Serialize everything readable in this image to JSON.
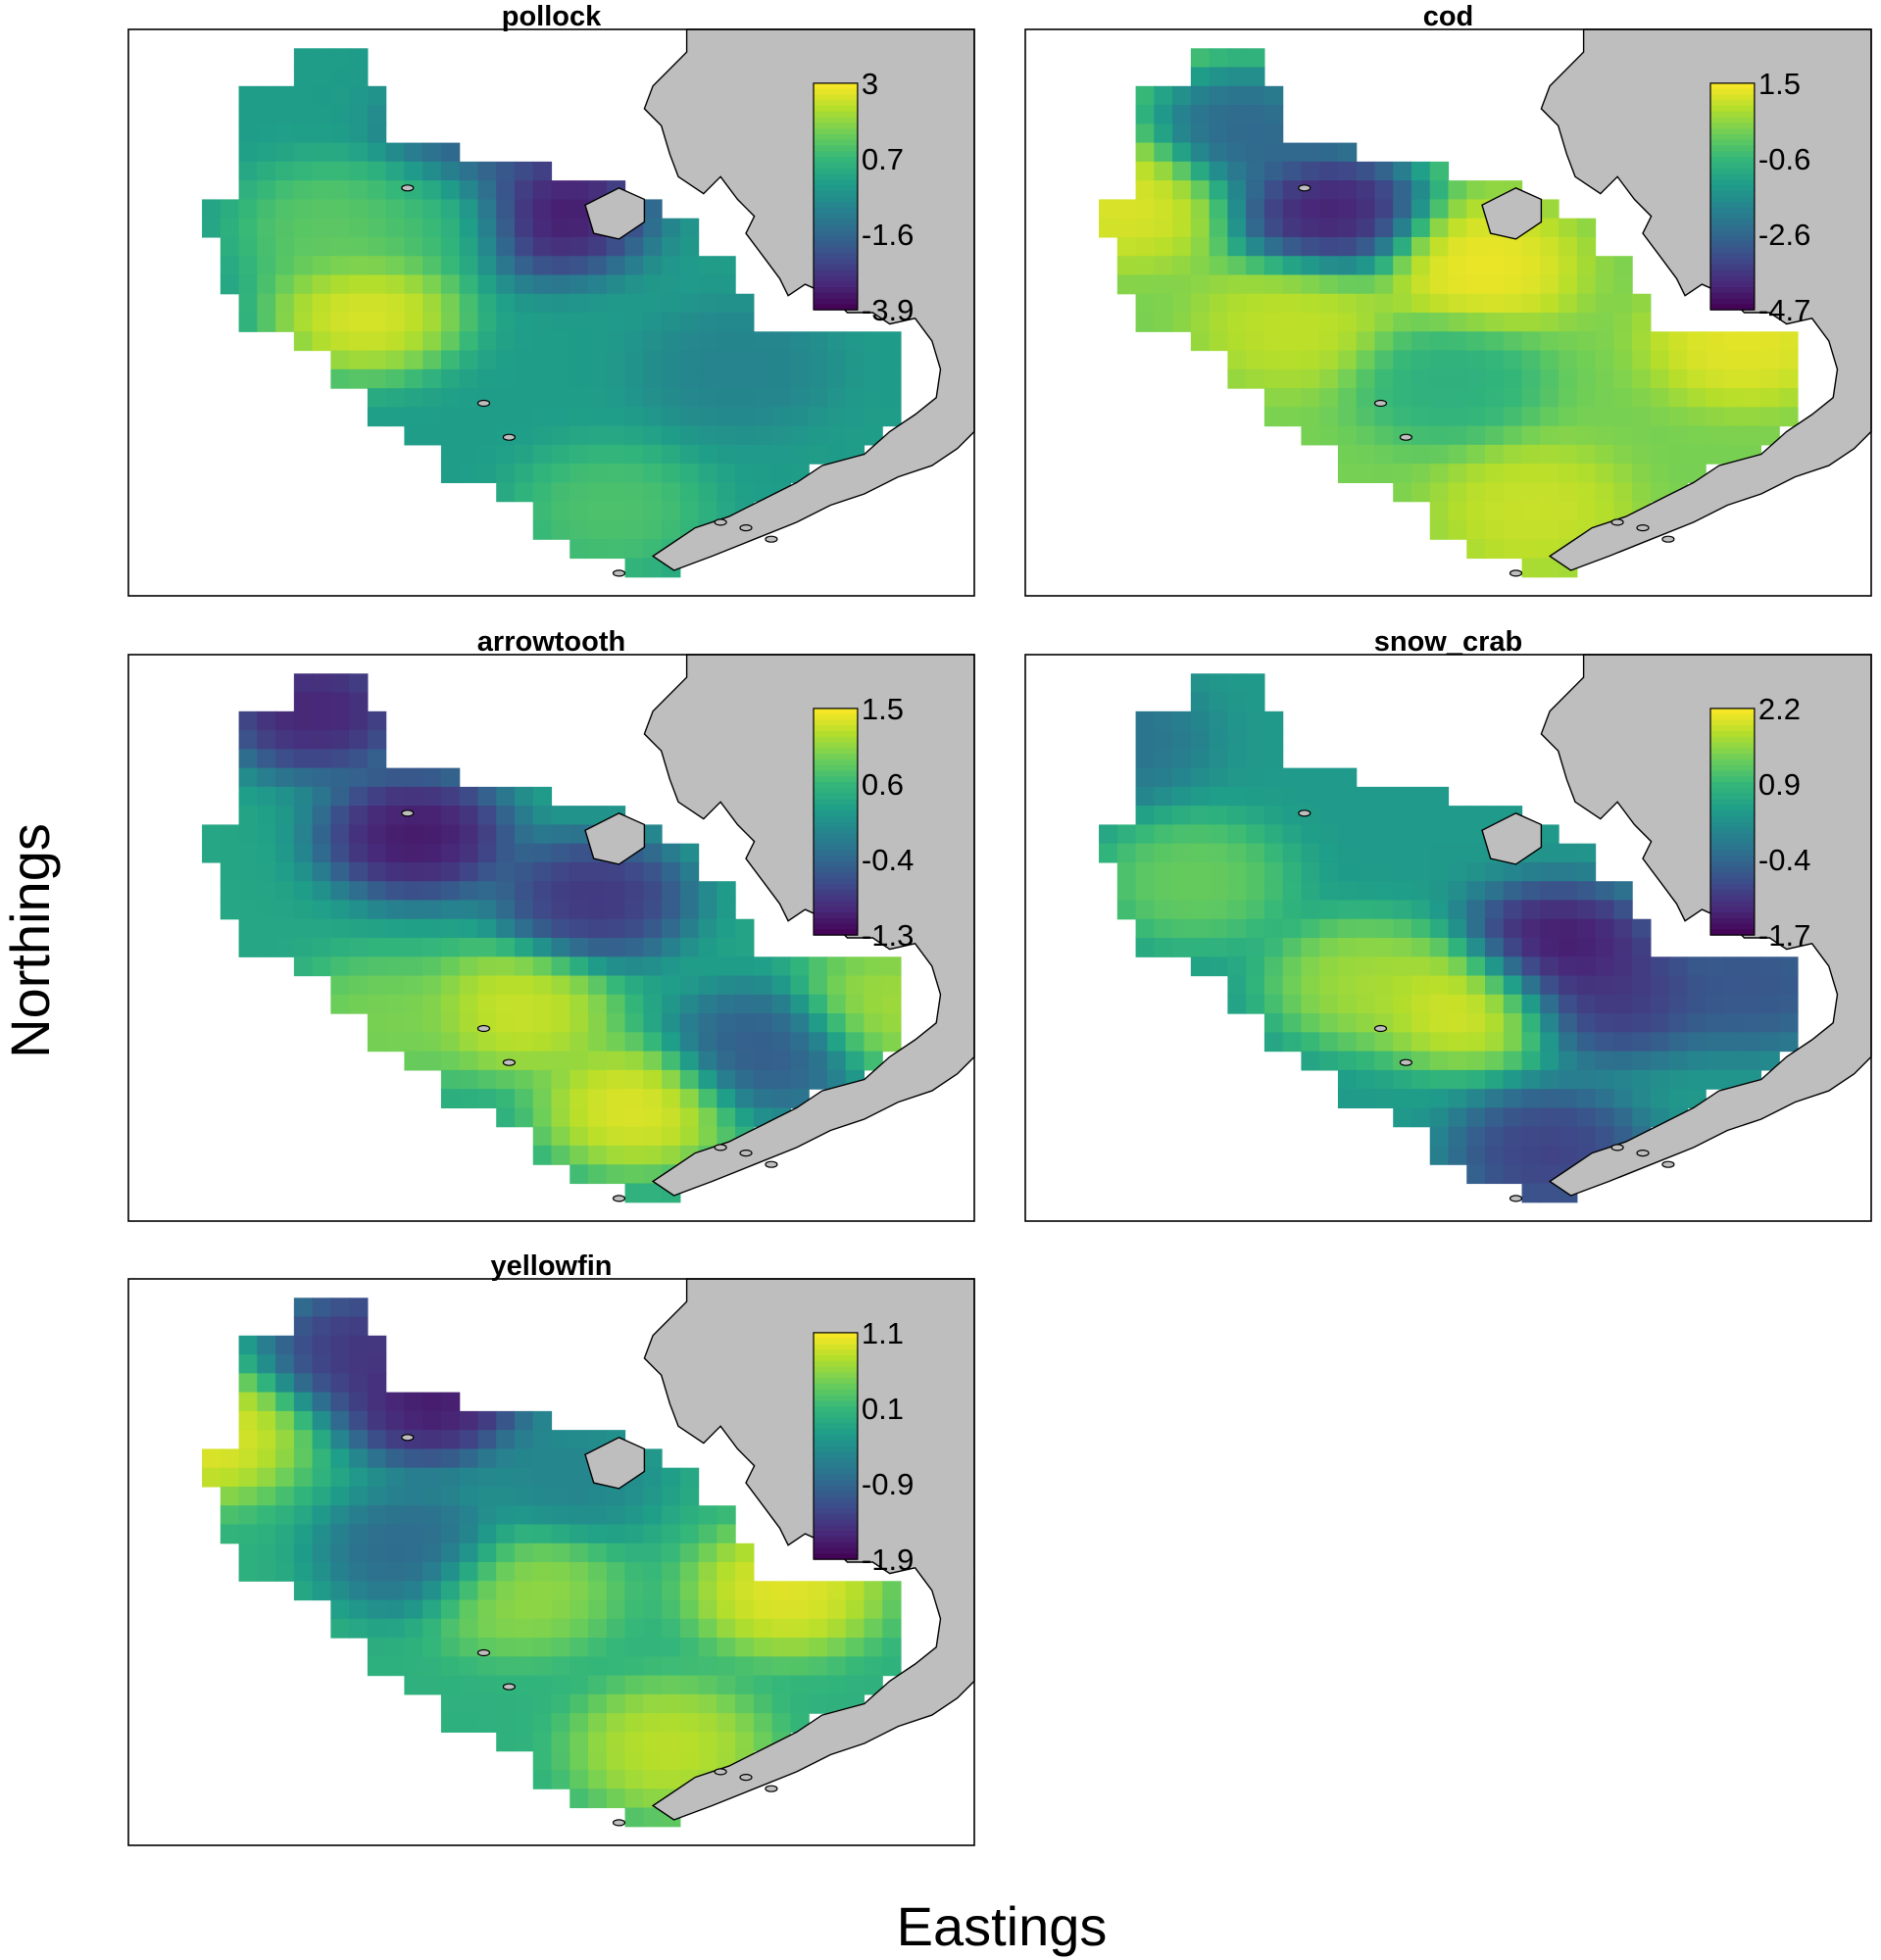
{
  "figure": {
    "x_axis_label": "Eastings",
    "y_axis_label": "Northings",
    "land_color": "#bebebe",
    "colormap": "viridis"
  },
  "chart_data": [
    {
      "type": "heatmap",
      "title": "pollock",
      "colorbar_ticks": [
        "3",
        "0.7",
        "-1.6",
        "-3.9"
      ],
      "value_range": [
        -3.9,
        3.0
      ],
      "hotspots": [
        {
          "u": 0.28,
          "v": 0.5,
          "value": 3.0
        },
        {
          "u": 0.24,
          "v": 0.35,
          "value": 1.4
        },
        {
          "u": 0.57,
          "v": 0.85,
          "value": 1.2
        },
        {
          "u": 0.36,
          "v": 0.33,
          "value": 1.0
        },
        {
          "u": 0.5,
          "v": 0.32,
          "value": -3.9
        },
        {
          "u": 0.42,
          "v": 0.2,
          "value": -2.2
        },
        {
          "u": 0.72,
          "v": 0.6,
          "value": -0.9
        }
      ],
      "base_value": -0.1
    },
    {
      "type": "heatmap",
      "title": "cod",
      "colorbar_ticks": [
        "1.5",
        "-0.6",
        "-2.6",
        "-4.7"
      ],
      "value_range": [
        -4.7,
        1.5
      ],
      "hotspots": [
        {
          "u": 0.54,
          "v": 0.42,
          "value": 1.5
        },
        {
          "u": 0.12,
          "v": 0.3,
          "value": 1.3
        },
        {
          "u": 0.85,
          "v": 0.55,
          "value": 1.4
        },
        {
          "u": 0.32,
          "v": 0.52,
          "value": 1.0
        },
        {
          "u": 0.6,
          "v": 0.85,
          "value": 1.1
        },
        {
          "u": 0.36,
          "v": 0.32,
          "value": -4.7
        },
        {
          "u": 0.26,
          "v": 0.18,
          "value": -3.0
        },
        {
          "u": 0.5,
          "v": 0.62,
          "value": -0.9
        }
      ],
      "base_value": 0.2
    },
    {
      "type": "heatmap",
      "title": "arrowtooth",
      "colorbar_ticks": [
        "1.5",
        "0.6",
        "-0.4",
        "-1.3"
      ],
      "value_range": [
        -1.3,
        1.5
      ],
      "hotspots": [
        {
          "u": 0.46,
          "v": 0.63,
          "value": 1.4
        },
        {
          "u": 0.6,
          "v": 0.8,
          "value": 1.5
        },
        {
          "u": 0.9,
          "v": 0.62,
          "value": 1.2
        },
        {
          "u": 0.3,
          "v": 0.65,
          "value": 1.0
        },
        {
          "u": 0.34,
          "v": 0.32,
          "value": -1.3
        },
        {
          "u": 0.22,
          "v": 0.1,
          "value": -1.2
        },
        {
          "u": 0.55,
          "v": 0.43,
          "value": -1.0
        },
        {
          "u": 0.75,
          "v": 0.7,
          "value": -0.6
        }
      ],
      "base_value": 0.35
    },
    {
      "type": "heatmap",
      "title": "snow_crab",
      "colorbar_ticks": [
        "2.2",
        "0.9",
        "-0.4",
        "-1.7"
      ],
      "value_range": [
        -1.7,
        2.2
      ],
      "hotspots": [
        {
          "u": 0.52,
          "v": 0.62,
          "value": 2.2
        },
        {
          "u": 0.4,
          "v": 0.58,
          "value": 1.8
        },
        {
          "u": 0.2,
          "v": 0.4,
          "value": 1.4
        },
        {
          "u": 0.63,
          "v": 0.52,
          "value": -1.7
        },
        {
          "u": 0.7,
          "v": 0.6,
          "value": -1.2
        },
        {
          "u": 0.62,
          "v": 0.88,
          "value": -1.1
        },
        {
          "u": 0.86,
          "v": 0.58,
          "value": -0.8
        },
        {
          "u": 0.1,
          "v": 0.15,
          "value": -0.3
        }
      ],
      "base_value": 0.4
    },
    {
      "type": "heatmap",
      "title": "yellowfin",
      "colorbar_ticks": [
        "1.1",
        "0.1",
        "-0.9",
        "-1.9"
      ],
      "value_range": [
        -1.9,
        1.1
      ],
      "hotspots": [
        {
          "u": 0.78,
          "v": 0.55,
          "value": 1.1
        },
        {
          "u": 0.09,
          "v": 0.28,
          "value": 1.1
        },
        {
          "u": 0.64,
          "v": 0.83,
          "value": 0.9
        },
        {
          "u": 0.46,
          "v": 0.55,
          "value": 0.7
        },
        {
          "u": 0.36,
          "v": 0.22,
          "value": -1.9
        },
        {
          "u": 0.28,
          "v": 0.12,
          "value": -1.6
        },
        {
          "u": 0.34,
          "v": 0.48,
          "value": -1.0
        },
        {
          "u": 0.52,
          "v": 0.35,
          "value": -0.6
        }
      ],
      "base_value": 0.0
    }
  ]
}
